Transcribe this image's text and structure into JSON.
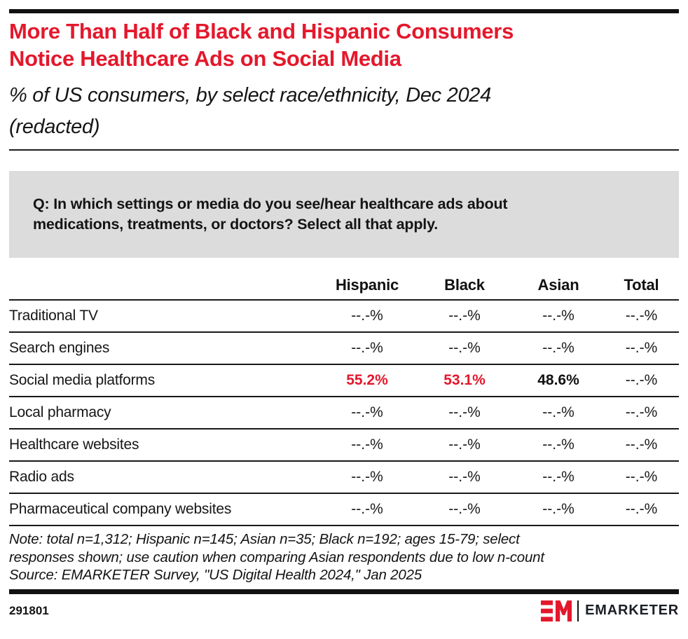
{
  "header": {
    "title_lines": [
      "More Than Half of Black and Hispanic Consumers",
      "Notice Healthcare Ads on Social Media"
    ],
    "subtitle_lines": [
      "% of US consumers, by select race/ethnicity, Dec 2024",
      "(redacted)"
    ]
  },
  "question_lines": [
    "Q: In which settings or media do you see/hear healthcare ads about",
    "medications, treatments, or doctors? Select all that apply."
  ],
  "chart_data": {
    "type": "table",
    "title": "More Than Half of Black and Hispanic Consumers Notice Healthcare Ads on Social Media",
    "subtitle": "% of US consumers, by select race/ethnicity, Dec 2024 (redacted)",
    "question": "Q: In which settings or media do you see/hear healthcare ads about medications, treatments, or doctors? Select all that apply.",
    "columns": [
      "Hispanic",
      "Black",
      "Asian",
      "Total"
    ],
    "rows": [
      {
        "label": "Traditional TV",
        "values": [
          {
            "text": "--.-%",
            "style": "redacted"
          },
          {
            "text": "--.-%",
            "style": "redacted"
          },
          {
            "text": "--.-%",
            "style": "redacted"
          },
          {
            "text": "--.-%",
            "style": "redacted"
          }
        ]
      },
      {
        "label": "Search engines",
        "values": [
          {
            "text": "--.-%",
            "style": "redacted"
          },
          {
            "text": "--.-%",
            "style": "redacted"
          },
          {
            "text": "--.-%",
            "style": "redacted"
          },
          {
            "text": "--.-%",
            "style": "redacted"
          }
        ]
      },
      {
        "label": "Social media platforms",
        "values": [
          {
            "text": "55.2%",
            "style": "highlight-red"
          },
          {
            "text": "53.1%",
            "style": "highlight-red"
          },
          {
            "text": "48.6%",
            "style": "highlight-black"
          },
          {
            "text": "--.-%",
            "style": "redacted"
          }
        ]
      },
      {
        "label": "Local pharmacy",
        "values": [
          {
            "text": "--.-%",
            "style": "redacted"
          },
          {
            "text": "--.-%",
            "style": "redacted"
          },
          {
            "text": "--.-%",
            "style": "redacted"
          },
          {
            "text": "--.-%",
            "style": "redacted"
          }
        ]
      },
      {
        "label": "Healthcare websites",
        "values": [
          {
            "text": "--.-%",
            "style": "redacted"
          },
          {
            "text": "--.-%",
            "style": "redacted"
          },
          {
            "text": "--.-%",
            "style": "redacted"
          },
          {
            "text": "--.-%",
            "style": "redacted"
          }
        ]
      },
      {
        "label": "Radio ads",
        "values": [
          {
            "text": "--.-%",
            "style": "redacted"
          },
          {
            "text": "--.-%",
            "style": "redacted"
          },
          {
            "text": "--.-%",
            "style": "redacted"
          },
          {
            "text": "--.-%",
            "style": "redacted"
          }
        ]
      },
      {
        "label": "Pharmaceutical company websites",
        "values": [
          {
            "text": "--.-%",
            "style": "redacted"
          },
          {
            "text": "--.-%",
            "style": "redacted"
          },
          {
            "text": "--.-%",
            "style": "redacted"
          },
          {
            "text": "--.-%",
            "style": "redacted"
          }
        ]
      }
    ],
    "note_lines": [
      "Note: total n=1,312; Hispanic n=145; Asian n=35; Black n=192; ages 15-79; select",
      "responses shown; use caution when comparing Asian respondents due to low n-count"
    ],
    "source": "Source: EMARKETER Survey, \"US Digital Health 2024,\" Jan 2025",
    "legend_position": "none",
    "grid": "horizontal-rules"
  },
  "footer": {
    "chart_id": "291801",
    "brand": "EMARKETER"
  },
  "colors": {
    "accent_red": "#e4182c",
    "question_box_bg": "#dcdcdc",
    "bar_black": "#111111"
  }
}
